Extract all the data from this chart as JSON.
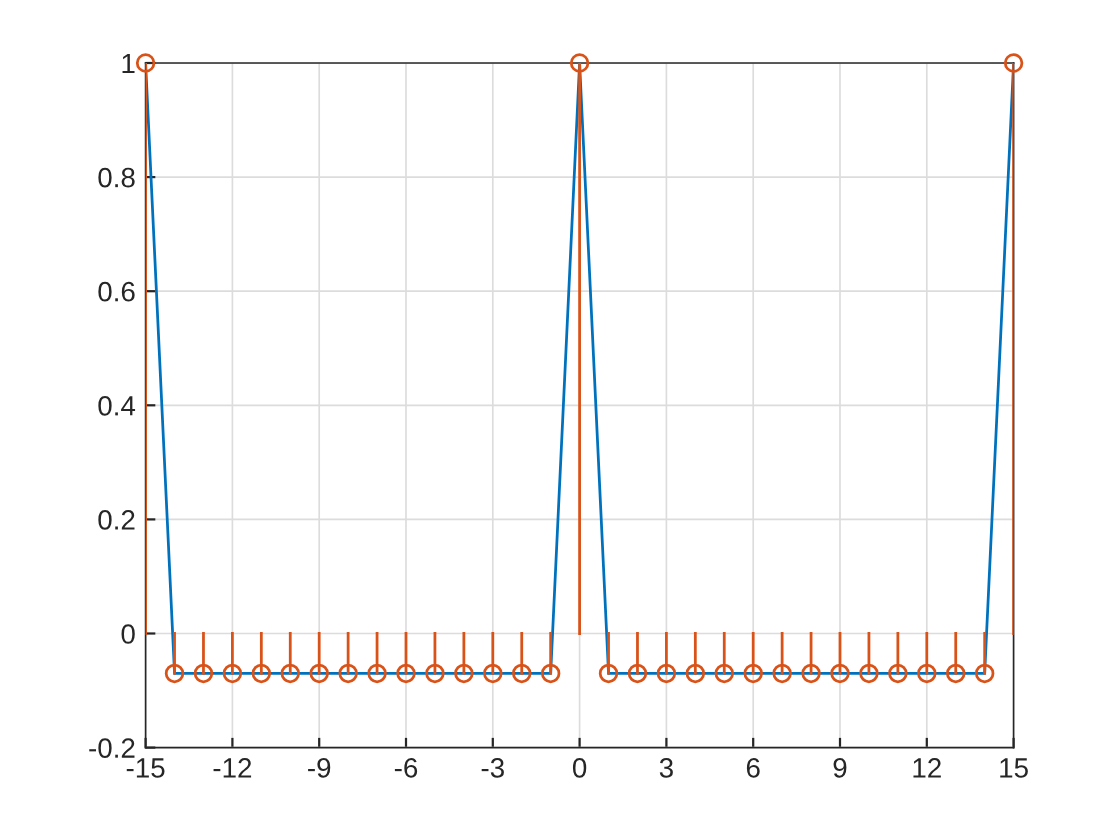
{
  "chart_data": {
    "type": "line",
    "x": [
      -15,
      -14,
      -13,
      -12,
      -11,
      -10,
      -9,
      -8,
      -7,
      -6,
      -5,
      -4,
      -3,
      -2,
      -1,
      0,
      1,
      2,
      3,
      4,
      5,
      6,
      7,
      8,
      9,
      10,
      11,
      12,
      13,
      14,
      15
    ],
    "series": [
      {
        "color": "#0072bd",
        "marker": "none",
        "values": [
          1,
          -0.07,
          -0.07,
          -0.07,
          -0.07,
          -0.07,
          -0.07,
          -0.07,
          -0.07,
          -0.07,
          -0.07,
          -0.07,
          -0.07,
          -0.07,
          -0.07,
          1,
          -0.07,
          -0.07,
          -0.07,
          -0.07,
          -0.07,
          -0.07,
          -0.07,
          -0.07,
          -0.07,
          -0.07,
          -0.07,
          -0.07,
          -0.07,
          -0.07,
          1
        ]
      },
      {
        "type": "lollipop",
        "color": "#d95319",
        "marker": "circle",
        "values": [
          1,
          -0.07,
          -0.07,
          -0.07,
          -0.07,
          -0.07,
          -0.07,
          -0.07,
          -0.07,
          -0.07,
          -0.07,
          -0.07,
          -0.07,
          -0.07,
          -0.07,
          1,
          -0.07,
          -0.07,
          -0.07,
          -0.07,
          -0.07,
          -0.07,
          -0.07,
          -0.07,
          -0.07,
          -0.07,
          -0.07,
          -0.07,
          -0.07,
          -0.07,
          1
        ]
      }
    ],
    "xlim": [
      -15,
      15
    ],
    "xticks": [
      -15,
      -12,
      -9,
      -6,
      -3,
      0,
      3,
      6,
      9,
      12,
      15
    ],
    "ylim": [
      -0.2,
      1
    ],
    "yticks": [
      -0.2,
      0,
      0.2,
      0.4,
      0.6,
      0.8,
      1
    ],
    "grid": true
  }
}
